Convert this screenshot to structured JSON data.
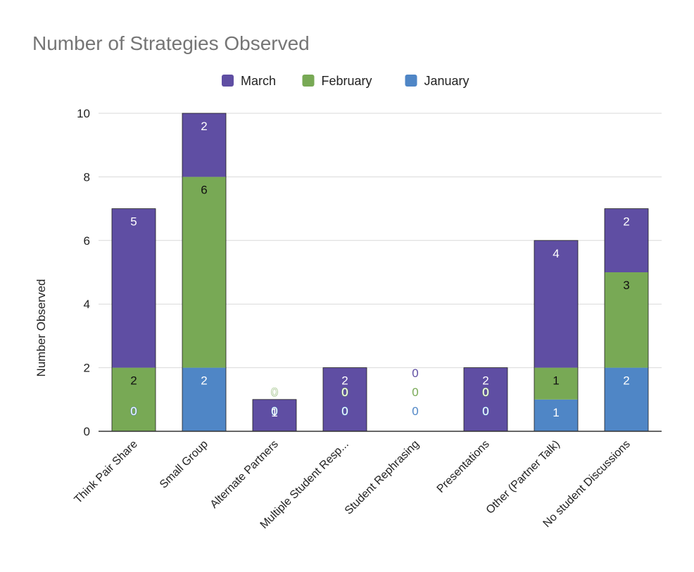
{
  "chart_data": {
    "type": "bar",
    "stacked": true,
    "title": "Number of Strategies Observed",
    "xlabel": "",
    "ylabel": "Number Observed",
    "ylim": [
      0,
      10
    ],
    "yticks": [
      0,
      2,
      4,
      6,
      8,
      10
    ],
    "ytick_labels": [
      "0",
      "2",
      "4",
      "6",
      "8",
      "10"
    ],
    "grid": true,
    "legend_position": "top-center",
    "categories": [
      "Think Pair Share",
      "Small Group",
      "Alternate Partners",
      "Multiple Student Resp...",
      "Student Rephrasing",
      "Presentations",
      "Other (Partner Talk)",
      "No student Discussions"
    ],
    "series": [
      {
        "name": "January",
        "color": "#4f86c6",
        "values": [
          0,
          2,
          0,
          0,
          0,
          0,
          1,
          2
        ]
      },
      {
        "name": "February",
        "color": "#78a955",
        "values": [
          2,
          6,
          0,
          0,
          0,
          0,
          1,
          3
        ]
      },
      {
        "name": "March",
        "color": "#5f4ea3",
        "values": [
          5,
          2,
          1,
          2,
          0,
          2,
          4,
          2
        ]
      }
    ],
    "legend_order": [
      "March",
      "February",
      "January"
    ]
  }
}
